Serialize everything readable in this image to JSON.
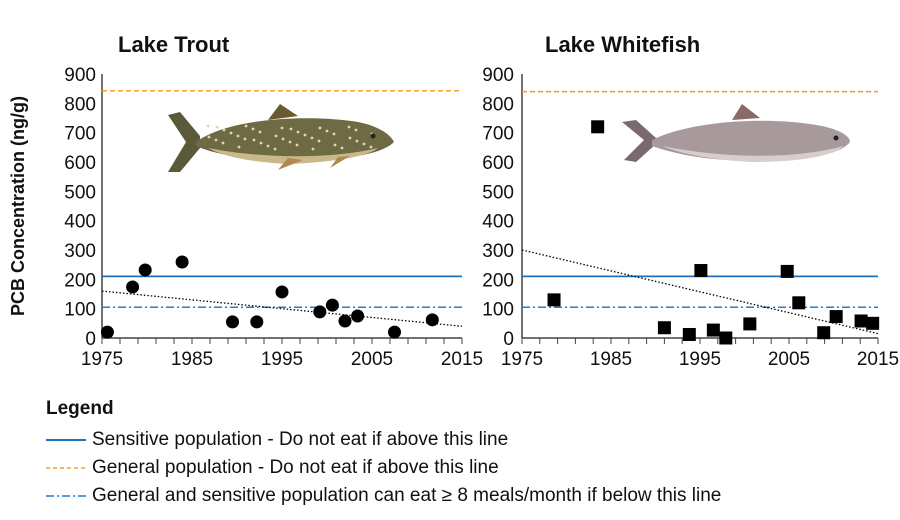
{
  "ylabel": "PCB Concentration (ng/g)",
  "colors": {
    "sensitive": "#1f6fbf",
    "general": "#f0a030",
    "meals": "#1f7fd0",
    "trend": "#000000",
    "points": "#000000"
  },
  "chart_data": [
    {
      "type": "scatter",
      "title": "Lake Trout",
      "marker": "circle",
      "xlim": [
        1975,
        2015
      ],
      "ylim": [
        0,
        900
      ],
      "xticks": [
        "1975",
        "1985",
        "1995",
        "2005",
        "2015"
      ],
      "yticks": [
        "0",
        "100",
        "200",
        "300",
        "400",
        "500",
        "600",
        "700",
        "800",
        "900"
      ],
      "points": [
        {
          "x": 1975.6,
          "y": 20
        },
        {
          "x": 1978.4,
          "y": 174
        },
        {
          "x": 1979.8,
          "y": 232
        },
        {
          "x": 1983.9,
          "y": 259
        },
        {
          "x": 1989.5,
          "y": 55
        },
        {
          "x": 1992.2,
          "y": 55
        },
        {
          "x": 1995,
          "y": 157
        },
        {
          "x": 1999.2,
          "y": 89
        },
        {
          "x": 2000.6,
          "y": 112
        },
        {
          "x": 2002,
          "y": 58
        },
        {
          "x": 2003.4,
          "y": 75
        },
        {
          "x": 2007.5,
          "y": 20
        },
        {
          "x": 2011.7,
          "y": 62
        }
      ],
      "trendline": [
        [
          1975,
          160
        ],
        [
          2015,
          40
        ]
      ],
      "reference_lines": {
        "sensitive": 210,
        "general": 843,
        "meals": 105
      },
      "image": "lake-trout"
    },
    {
      "type": "scatter",
      "title": "Lake Whitefish",
      "marker": "square",
      "xlim": [
        1975,
        2015
      ],
      "ylim": [
        0,
        900
      ],
      "xticks": [
        "1975",
        "1985",
        "1995",
        "2005",
        "2015"
      ],
      "yticks": [
        "0",
        "100",
        "200",
        "300",
        "400",
        "500",
        "600",
        "700",
        "800",
        "900"
      ],
      "points": [
        {
          "x": 1978.6,
          "y": 130
        },
        {
          "x": 1983.5,
          "y": 720
        },
        {
          "x": 1991,
          "y": 35
        },
        {
          "x": 1993.8,
          "y": 12
        },
        {
          "x": 1995.1,
          "y": 230
        },
        {
          "x": 1996.5,
          "y": 27
        },
        {
          "x": 1997.9,
          "y": 0
        },
        {
          "x": 2000.6,
          "y": 48
        },
        {
          "x": 2004.8,
          "y": 227
        },
        {
          "x": 2006.1,
          "y": 120
        },
        {
          "x": 2008.9,
          "y": 18
        },
        {
          "x": 2010.3,
          "y": 73
        },
        {
          "x": 2013.1,
          "y": 58
        },
        {
          "x": 2014.4,
          "y": 50
        }
      ],
      "trendline": [
        [
          1975,
          300
        ],
        [
          2015,
          15
        ]
      ],
      "reference_lines": {
        "sensitive": 210,
        "general": 840,
        "meals": 105
      },
      "image": "lake-whitefish"
    }
  ],
  "legend": {
    "title": "Legend",
    "items": [
      {
        "key": "sensitive",
        "label": "Sensitive population - Do not eat if above this line"
      },
      {
        "key": "general",
        "label": "General population - Do not eat if above this line"
      },
      {
        "key": "meals",
        "label": "General and sensitive population can eat ≥ 8 meals/month if below this line"
      }
    ]
  }
}
